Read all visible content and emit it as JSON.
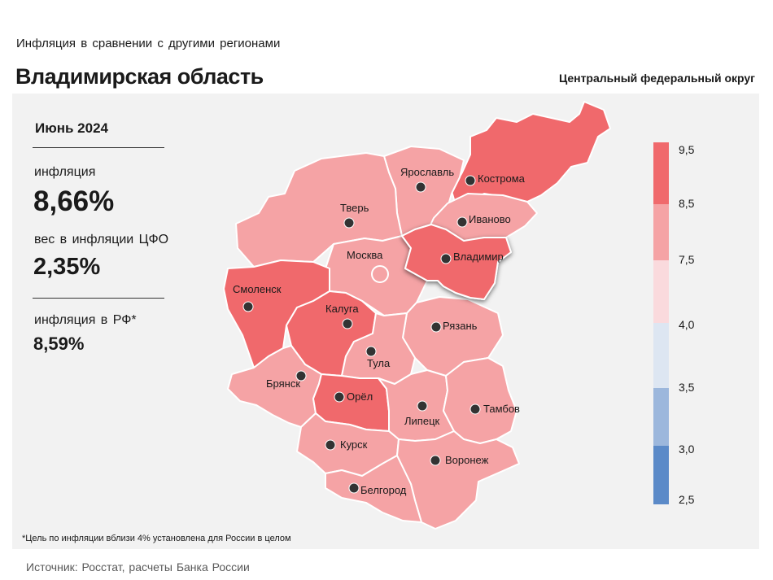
{
  "header": {
    "subtitle": "Инфляция  в сравнении  с другими  регионами",
    "title": "Владимирская область",
    "district": "Центральный федеральный округ"
  },
  "stats": {
    "month": "Июнь 2024",
    "inflation_label": "инфляция",
    "inflation_value": "8,66%",
    "weight_label": "вес в инфляции  ЦФО",
    "weight_value": "2,35%",
    "russia_label": "инфляция  в РФ*",
    "russia_value": "8,59%"
  },
  "footnote": "*Цель по инфляции вблизи 4% установлена для России в целом",
  "source": "Источник: Росстат, расчеты Банка России",
  "legend": {
    "ticks": [
      "9,5",
      "8,5",
      "7,5",
      "4,0",
      "3,5",
      "3,0",
      "2,5"
    ],
    "colors": {
      "high": "#f0696c",
      "mid": "#f5a3a5",
      "low_mid": "#fadadd",
      "neutral": "#dde6f2",
      "light_blue": "#9cb7dc",
      "blue": "#5b8ac8"
    }
  },
  "map": {
    "selected_region": "Владимир",
    "capital": "Москва",
    "regions": [
      {
        "city": "Кострома",
        "bucket": "8,5–9,5"
      },
      {
        "city": "Ярославль",
        "bucket": "7,5–8,5"
      },
      {
        "city": "Иваново",
        "bucket": "7,5–8,5"
      },
      {
        "city": "Тверь",
        "bucket": "7,5–8,5"
      },
      {
        "city": "Москва",
        "bucket": "7,5–8,5"
      },
      {
        "city": "Владимир",
        "bucket": "8,5–9,5"
      },
      {
        "city": "Смоленск",
        "bucket": "8,5–9,5"
      },
      {
        "city": "Калуга",
        "bucket": "8,5–9,5"
      },
      {
        "city": "Рязань",
        "bucket": "7,5–8,5"
      },
      {
        "city": "Тула",
        "bucket": "7,5–8,5"
      },
      {
        "city": "Брянск",
        "bucket": "7,5–8,5"
      },
      {
        "city": "Орёл",
        "bucket": "8,5–9,5"
      },
      {
        "city": "Липецк",
        "bucket": "7,5–8,5"
      },
      {
        "city": "Тамбов",
        "bucket": "7,5–8,5"
      },
      {
        "city": "Курск",
        "bucket": "7,5–8,5"
      },
      {
        "city": "Воронеж",
        "bucket": "7,5–8,5"
      },
      {
        "city": "Белгород",
        "bucket": "7,5–8,5"
      }
    ]
  }
}
